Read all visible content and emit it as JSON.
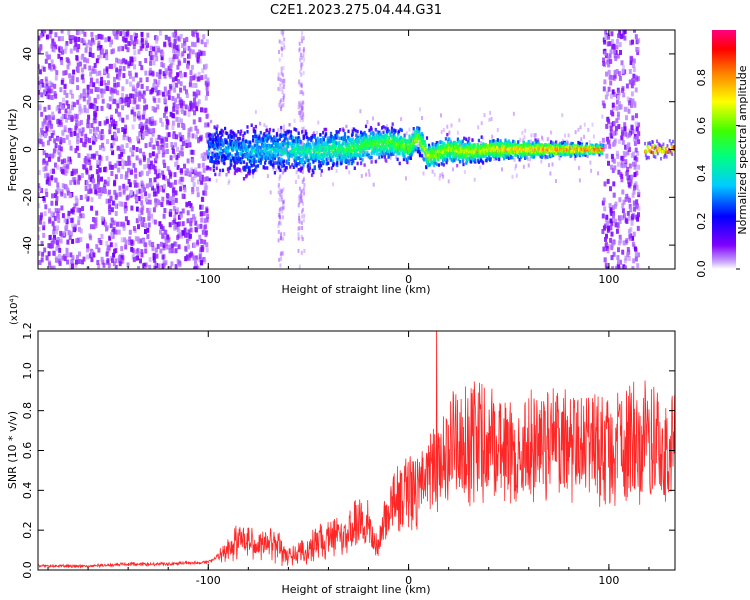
{
  "title": "C2E1.2023.275.04.44.G31",
  "chart_data": [
    {
      "type": "heatmap",
      "xlabel": "Height of straight line (km)",
      "ylabel": "Frequency (Hz)",
      "xlim": [
        -185,
        133
      ],
      "ylim": [
        -50,
        50
      ],
      "xticks": [
        -100,
        0,
        100
      ],
      "yticks": [
        -40,
        -20,
        0,
        20,
        40
      ],
      "colorbar": {
        "label": "Normalized spectral amplitude",
        "range": [
          0,
          1
        ],
        "ticks": [
          0.0,
          0.2,
          0.4,
          0.6,
          0.8
        ]
      },
      "ridge": {
        "x": [
          -100,
          -90,
          -80,
          -70,
          -60,
          -50,
          -40,
          -30,
          -20,
          -10,
          0,
          5,
          10,
          20,
          30,
          40,
          50,
          60,
          70,
          80,
          90,
          97
        ],
        "freq": [
          0,
          0,
          -1,
          0,
          0,
          -1,
          0,
          0,
          2,
          3,
          1,
          5,
          -3,
          0,
          -1,
          0,
          0,
          0,
          0,
          0,
          0,
          0
        ]
      },
      "noise_regions_x": [
        [
          -185,
          -100
        ],
        [
          97,
          115
        ]
      ],
      "bands_x": [
        [
          -65,
          -62
        ],
        [
          -55,
          -52
        ]
      ]
    },
    {
      "type": "line",
      "xlabel": "Height of straight line (km)",
      "ylabel": "SNR (10 * v/v)",
      "multiplier": "(x10⁴)",
      "xlim": [
        -185,
        133
      ],
      "ylim": [
        0,
        1.2
      ],
      "xticks": [
        -100,
        0,
        100
      ],
      "yticks": [
        0.0,
        0.2,
        0.4,
        0.6,
        0.8,
        1.0,
        1.2
      ],
      "series": [
        {
          "color": "#ff0000",
          "x": [
            -185,
            -160,
            -140,
            -120,
            -100,
            -90,
            -85,
            -80,
            -75,
            -70,
            -65,
            -60,
            -55,
            -50,
            -45,
            -40,
            -35,
            -30,
            -25,
            -20,
            -15,
            -10,
            -5,
            0,
            5,
            10,
            15,
            20,
            25,
            30,
            35,
            40,
            45,
            50,
            55,
            60,
            65,
            70,
            75,
            80,
            85,
            90,
            95,
            100,
            105,
            110,
            115,
            120,
            125,
            133
          ],
          "y": [
            0.02,
            0.02,
            0.03,
            0.03,
            0.04,
            0.1,
            0.15,
            0.15,
            0.13,
            0.14,
            0.12,
            0.07,
            0.08,
            0.09,
            0.16,
            0.15,
            0.19,
            0.2,
            0.25,
            0.22,
            0.12,
            0.3,
            0.35,
            0.4,
            0.38,
            0.45,
            0.55,
            0.62,
            0.62,
            0.62,
            0.68,
            0.64,
            0.63,
            0.6,
            0.54,
            0.62,
            0.6,
            0.62,
            0.63,
            0.62,
            0.6,
            0.62,
            0.62,
            0.61,
            0.6,
            0.62,
            0.64,
            0.66,
            0.64,
            0.65
          ]
        }
      ]
    }
  ]
}
